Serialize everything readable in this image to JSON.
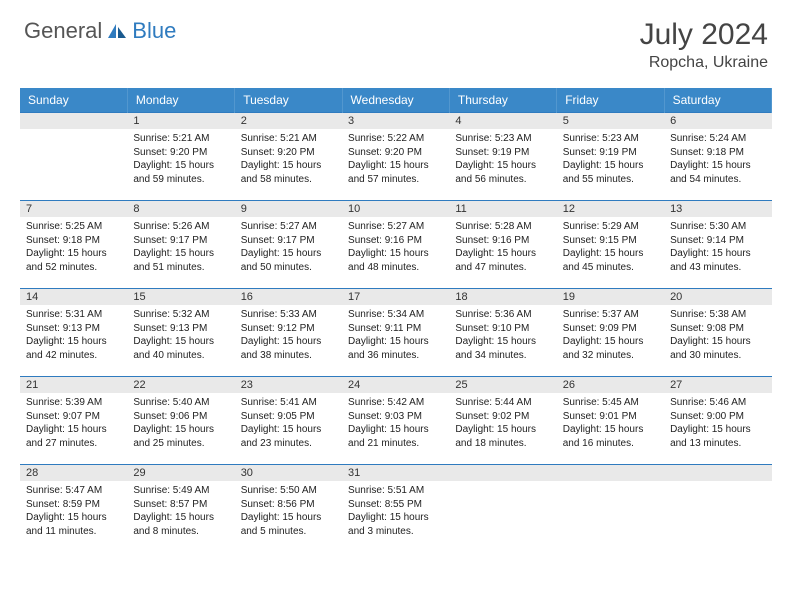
{
  "logo": {
    "general": "General",
    "blue": "Blue"
  },
  "title": "July 2024",
  "location": "Ropcha, Ukraine",
  "header_color": "#3a88c8",
  "border_color": "#2f7bbf",
  "daynum_bg": "#e9e9e9",
  "days_of_week": [
    "Sunday",
    "Monday",
    "Tuesday",
    "Wednesday",
    "Thursday",
    "Friday",
    "Saturday"
  ],
  "first_weekday": 1,
  "days": [
    {
      "n": 1,
      "sr": "5:21 AM",
      "ss": "9:20 PM",
      "dl": "15 hours and 59 minutes."
    },
    {
      "n": 2,
      "sr": "5:21 AM",
      "ss": "9:20 PM",
      "dl": "15 hours and 58 minutes."
    },
    {
      "n": 3,
      "sr": "5:22 AM",
      "ss": "9:20 PM",
      "dl": "15 hours and 57 minutes."
    },
    {
      "n": 4,
      "sr": "5:23 AM",
      "ss": "9:19 PM",
      "dl": "15 hours and 56 minutes."
    },
    {
      "n": 5,
      "sr": "5:23 AM",
      "ss": "9:19 PM",
      "dl": "15 hours and 55 minutes."
    },
    {
      "n": 6,
      "sr": "5:24 AM",
      "ss": "9:18 PM",
      "dl": "15 hours and 54 minutes."
    },
    {
      "n": 7,
      "sr": "5:25 AM",
      "ss": "9:18 PM",
      "dl": "15 hours and 52 minutes."
    },
    {
      "n": 8,
      "sr": "5:26 AM",
      "ss": "9:17 PM",
      "dl": "15 hours and 51 minutes."
    },
    {
      "n": 9,
      "sr": "5:27 AM",
      "ss": "9:17 PM",
      "dl": "15 hours and 50 minutes."
    },
    {
      "n": 10,
      "sr": "5:27 AM",
      "ss": "9:16 PM",
      "dl": "15 hours and 48 minutes."
    },
    {
      "n": 11,
      "sr": "5:28 AM",
      "ss": "9:16 PM",
      "dl": "15 hours and 47 minutes."
    },
    {
      "n": 12,
      "sr": "5:29 AM",
      "ss": "9:15 PM",
      "dl": "15 hours and 45 minutes."
    },
    {
      "n": 13,
      "sr": "5:30 AM",
      "ss": "9:14 PM",
      "dl": "15 hours and 43 minutes."
    },
    {
      "n": 14,
      "sr": "5:31 AM",
      "ss": "9:13 PM",
      "dl": "15 hours and 42 minutes."
    },
    {
      "n": 15,
      "sr": "5:32 AM",
      "ss": "9:13 PM",
      "dl": "15 hours and 40 minutes."
    },
    {
      "n": 16,
      "sr": "5:33 AM",
      "ss": "9:12 PM",
      "dl": "15 hours and 38 minutes."
    },
    {
      "n": 17,
      "sr": "5:34 AM",
      "ss": "9:11 PM",
      "dl": "15 hours and 36 minutes."
    },
    {
      "n": 18,
      "sr": "5:36 AM",
      "ss": "9:10 PM",
      "dl": "15 hours and 34 minutes."
    },
    {
      "n": 19,
      "sr": "5:37 AM",
      "ss": "9:09 PM",
      "dl": "15 hours and 32 minutes."
    },
    {
      "n": 20,
      "sr": "5:38 AM",
      "ss": "9:08 PM",
      "dl": "15 hours and 30 minutes."
    },
    {
      "n": 21,
      "sr": "5:39 AM",
      "ss": "9:07 PM",
      "dl": "15 hours and 27 minutes."
    },
    {
      "n": 22,
      "sr": "5:40 AM",
      "ss": "9:06 PM",
      "dl": "15 hours and 25 minutes."
    },
    {
      "n": 23,
      "sr": "5:41 AM",
      "ss": "9:05 PM",
      "dl": "15 hours and 23 minutes."
    },
    {
      "n": 24,
      "sr": "5:42 AM",
      "ss": "9:03 PM",
      "dl": "15 hours and 21 minutes."
    },
    {
      "n": 25,
      "sr": "5:44 AM",
      "ss": "9:02 PM",
      "dl": "15 hours and 18 minutes."
    },
    {
      "n": 26,
      "sr": "5:45 AM",
      "ss": "9:01 PM",
      "dl": "15 hours and 16 minutes."
    },
    {
      "n": 27,
      "sr": "5:46 AM",
      "ss": "9:00 PM",
      "dl": "15 hours and 13 minutes."
    },
    {
      "n": 28,
      "sr": "5:47 AM",
      "ss": "8:59 PM",
      "dl": "15 hours and 11 minutes."
    },
    {
      "n": 29,
      "sr": "5:49 AM",
      "ss": "8:57 PM",
      "dl": "15 hours and 8 minutes."
    },
    {
      "n": 30,
      "sr": "5:50 AM",
      "ss": "8:56 PM",
      "dl": "15 hours and 5 minutes."
    },
    {
      "n": 31,
      "sr": "5:51 AM",
      "ss": "8:55 PM",
      "dl": "15 hours and 3 minutes."
    }
  ],
  "labels": {
    "sunrise": "Sunrise:",
    "sunset": "Sunset:",
    "daylight": "Daylight:"
  }
}
